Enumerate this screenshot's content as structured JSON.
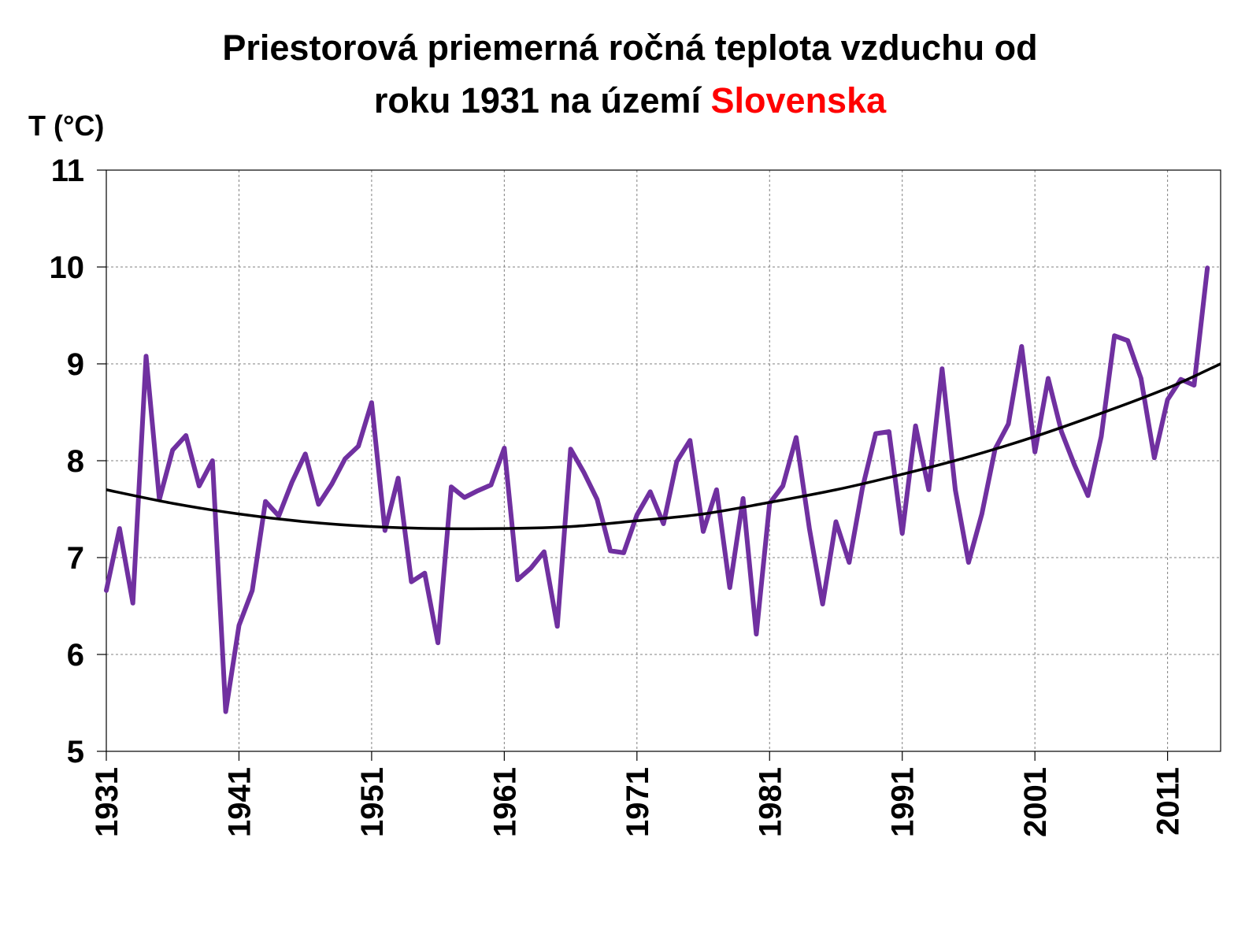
{
  "chart_data": {
    "type": "line",
    "title_line1": "Priestorová priemerná ročná teplota vzduchu od",
    "title_line2_prefix": "roku 1931 na území ",
    "title_line2_highlight": "Slovenska",
    "ylabel": "T (°C)",
    "xlabel": "",
    "xlim": [
      1931,
      2015
    ],
    "ylim": [
      5,
      11
    ],
    "yticks": [
      5,
      6,
      7,
      8,
      9,
      10,
      11
    ],
    "xticks": [
      "1931",
      "1941",
      "1951",
      "1961",
      "1971",
      "1981",
      "1991",
      "2001",
      "2011"
    ],
    "grid": true,
    "legend": "none",
    "series": [
      {
        "kind": "annual",
        "color": "#7030a0",
        "x": [
          1931,
          1932,
          1933,
          1934,
          1935,
          1936,
          1937,
          1938,
          1939,
          1940,
          1941,
          1942,
          1943,
          1944,
          1945,
          1946,
          1947,
          1948,
          1949,
          1950,
          1951,
          1952,
          1953,
          1954,
          1955,
          1956,
          1957,
          1958,
          1959,
          1960,
          1961,
          1962,
          1963,
          1964,
          1965,
          1966,
          1967,
          1968,
          1969,
          1970,
          1971,
          1972,
          1973,
          1974,
          1975,
          1976,
          1977,
          1978,
          1979,
          1980,
          1981,
          1982,
          1983,
          1984,
          1985,
          1986,
          1987,
          1988,
          1989,
          1990,
          1991,
          1992,
          1993,
          1994,
          1995,
          1996,
          1997,
          1998,
          1999,
          2000,
          2001,
          2002,
          2003,
          2004,
          2005,
          2006,
          2007,
          2008,
          2009,
          2010,
          2011,
          2012,
          2013,
          2014
        ],
        "y": [
          6.66,
          7.3,
          6.53,
          9.08,
          7.6,
          8.11,
          8.26,
          7.74,
          8.0,
          5.41,
          6.3,
          6.66,
          7.58,
          7.43,
          7.78,
          8.07,
          7.55,
          7.76,
          8.02,
          8.15,
          8.6,
          7.28,
          7.82,
          6.75,
          6.84,
          6.12,
          7.73,
          7.62,
          7.69,
          7.75,
          8.13,
          6.77,
          6.89,
          7.06,
          6.29,
          8.12,
          7.88,
          7.6,
          7.07,
          7.05,
          7.44,
          7.68,
          7.35,
          7.99,
          8.21,
          7.27,
          7.7,
          6.69,
          7.61,
          6.21,
          7.56,
          7.74,
          8.24,
          7.3,
          6.52,
          7.37,
          6.95,
          7.72,
          8.28,
          8.3,
          7.25,
          8.36,
          7.7,
          8.95,
          7.7,
          6.95,
          7.45,
          8.12,
          8.38,
          9.18,
          8.09,
          8.85,
          8.3,
          7.95,
          7.64,
          8.25,
          9.29,
          9.24,
          8.85,
          8.03,
          8.63,
          8.84,
          8.78,
          9.99
        ]
      },
      {
        "kind": "trend",
        "color": "#000000",
        "x": [
          1931,
          1936,
          1941,
          1946,
          1951,
          1956,
          1961,
          1966,
          1971,
          1976,
          1981,
          1986,
          1991,
          1996,
          2001,
          2006,
          2011,
          2015
        ],
        "y": [
          7.7,
          7.56,
          7.45,
          7.37,
          7.32,
          7.3,
          7.3,
          7.32,
          7.38,
          7.45,
          7.57,
          7.7,
          7.86,
          8.04,
          8.25,
          8.49,
          8.75,
          9.0
        ]
      }
    ]
  }
}
